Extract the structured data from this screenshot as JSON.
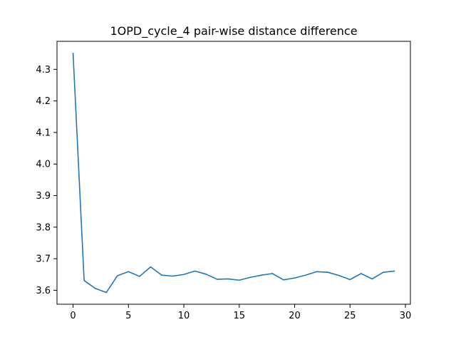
{
  "chart_data": {
    "type": "line",
    "title": "1OPD_cycle_4 pair-wise distance difference",
    "xlabel": "",
    "ylabel": "",
    "xlim": [
      -1.45,
      30.45
    ],
    "ylim": [
      3.5558,
      4.3888
    ],
    "x_ticks": [
      0,
      5,
      10,
      15,
      20,
      25,
      30
    ],
    "y_ticks": [
      3.6,
      3.7,
      3.8,
      3.9,
      4.0,
      4.1,
      4.2,
      4.3
    ],
    "x_tick_labels": [
      "0",
      "5",
      "10",
      "15",
      "20",
      "25",
      "30"
    ],
    "y_tick_labels": [
      "3.6",
      "3.7",
      "3.8",
      "3.9",
      "4.0",
      "4.1",
      "4.2",
      "4.3"
    ],
    "grid": false,
    "colors": {
      "series": "#1f77b4",
      "axes": "#000000",
      "background": "#ffffff"
    },
    "series": [
      {
        "x": [
          0,
          1,
          2,
          3,
          4,
          5,
          6,
          7,
          8,
          9,
          10,
          11,
          12,
          13,
          14,
          15,
          16,
          17,
          18,
          19,
          20,
          21,
          22,
          23,
          24,
          25,
          26,
          27,
          28,
          29
        ],
        "values": [
          4.351,
          3.631,
          3.606,
          3.593,
          3.646,
          3.659,
          3.644,
          3.674,
          3.648,
          3.645,
          3.65,
          3.661,
          3.651,
          3.635,
          3.636,
          3.632,
          3.641,
          3.648,
          3.653,
          3.633,
          3.639,
          3.648,
          3.659,
          3.657,
          3.647,
          3.634,
          3.653,
          3.636,
          3.657,
          3.661
        ]
      }
    ]
  }
}
